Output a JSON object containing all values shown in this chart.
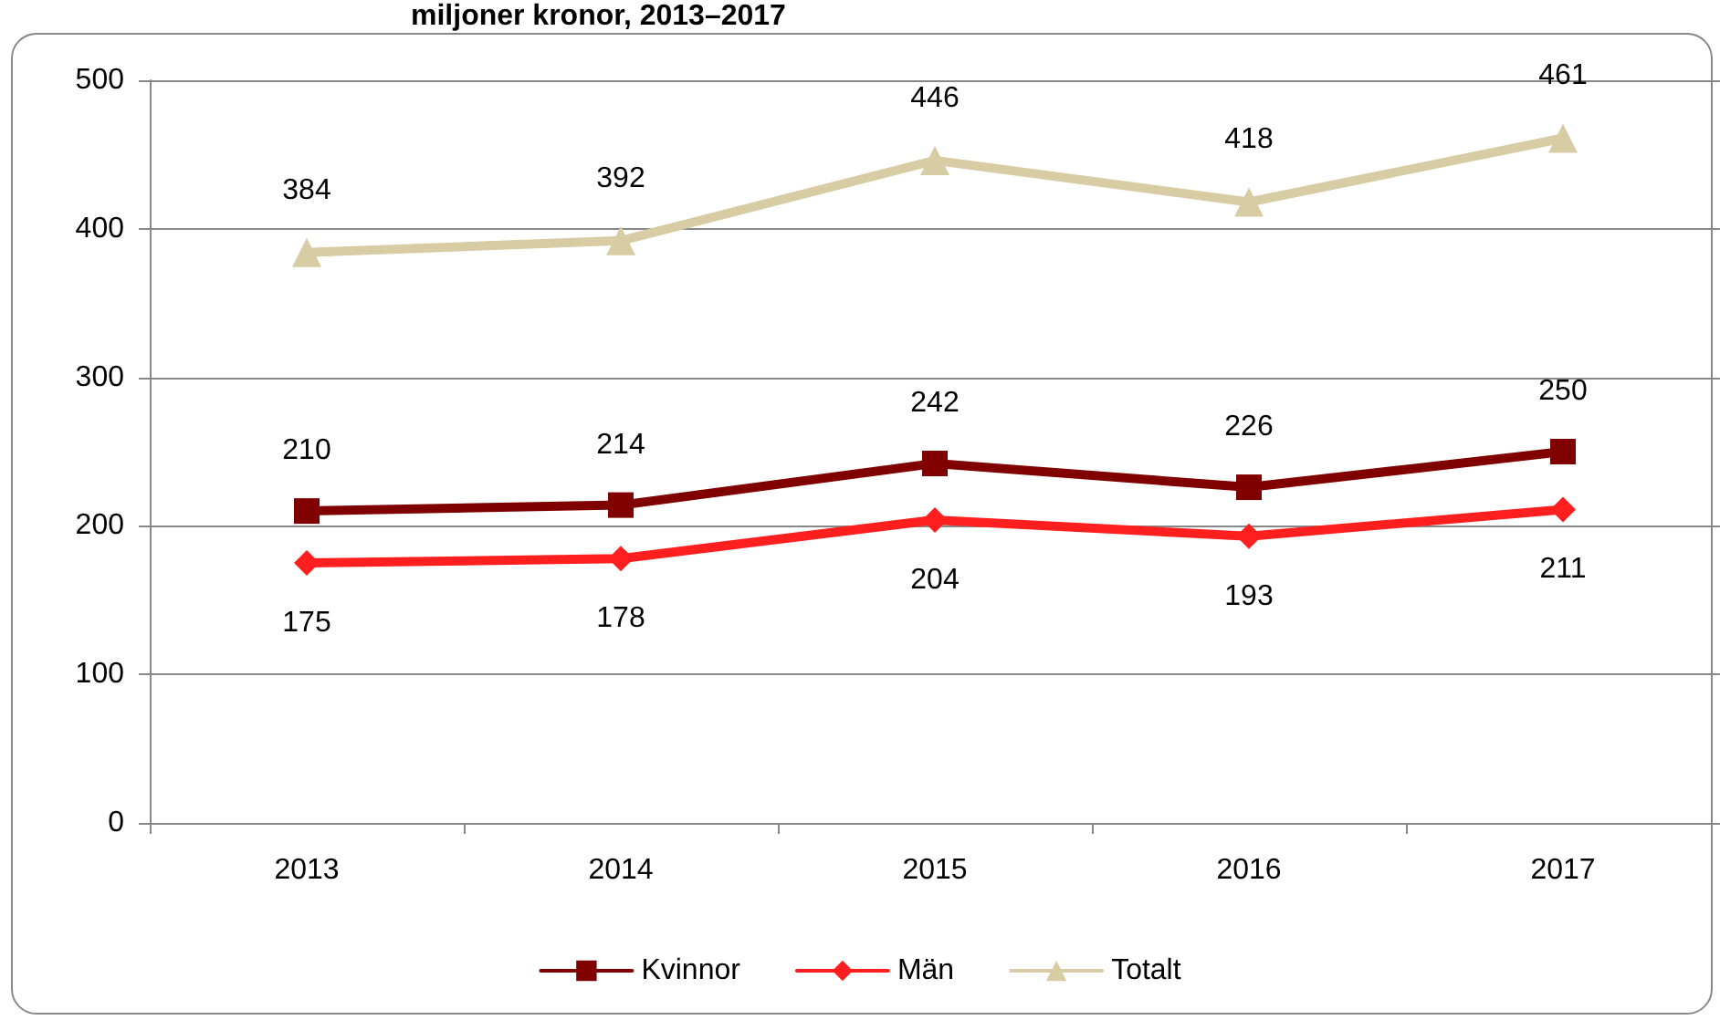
{
  "chart_data": {
    "type": "line",
    "title": "miljoner kronor, 2013–2017",
    "categories": [
      "2013",
      "2014",
      "2015",
      "2016",
      "2017"
    ],
    "series": [
      {
        "name": "Kvinnor",
        "color": "#800000",
        "marker": "square",
        "values": [
          210,
          214,
          242,
          226,
          250
        ]
      },
      {
        "name": "Män",
        "color": "#ff1f1f",
        "marker": "diamond",
        "values": [
          175,
          178,
          204,
          193,
          211
        ]
      },
      {
        "name": "Totalt",
        "color": "#d8cca4",
        "marker": "triangle",
        "values": [
          384,
          392,
          446,
          418,
          461
        ]
      }
    ],
    "ylim": [
      0,
      500
    ],
    "yticks": [
      0,
      100,
      200,
      300,
      400,
      500
    ],
    "grid": "y",
    "legend": "bottom",
    "data_labels": true
  }
}
